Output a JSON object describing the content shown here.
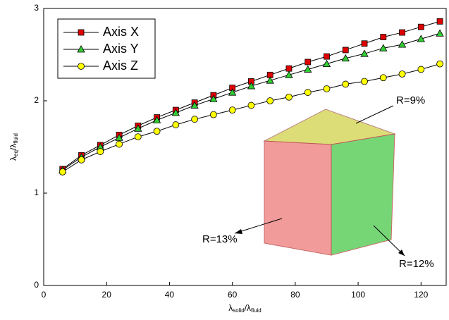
{
  "chart_data": {
    "type": "line",
    "x_label": [
      "λ",
      "solid",
      "/λ",
      "fluid"
    ],
    "y_label": [
      "λ",
      "eq",
      "/λ",
      "fluid"
    ],
    "x": [
      6,
      12,
      18,
      24,
      30,
      36,
      42,
      48,
      54,
      60,
      66,
      72,
      78,
      84,
      90,
      96,
      102,
      108,
      114,
      120,
      126
    ],
    "series": [
      {
        "name": "Axis X",
        "color": "#e00000",
        "marker": "square",
        "values": [
          1.26,
          1.41,
          1.52,
          1.63,
          1.73,
          1.82,
          1.9,
          1.98,
          2.06,
          2.14,
          2.21,
          2.28,
          2.35,
          2.42,
          2.48,
          2.55,
          2.62,
          2.69,
          2.74,
          2.8,
          2.86
        ]
      },
      {
        "name": "Axis Y",
        "color": "#33cc33",
        "marker": "triangle",
        "values": [
          1.25,
          1.39,
          1.5,
          1.6,
          1.7,
          1.79,
          1.87,
          1.95,
          2.02,
          2.09,
          2.16,
          2.22,
          2.28,
          2.34,
          2.4,
          2.46,
          2.51,
          2.57,
          2.61,
          2.67,
          2.73
        ]
      },
      {
        "name": "Axis Z",
        "color": "#ffff00",
        "marker": "circle",
        "values": [
          1.23,
          1.36,
          1.45,
          1.53,
          1.61,
          1.67,
          1.74,
          1.8,
          1.85,
          1.9,
          1.95,
          2.0,
          2.04,
          2.09,
          2.13,
          2.18,
          2.21,
          2.25,
          2.29,
          2.34,
          2.4
        ]
      }
    ],
    "xlim": [
      0,
      128
    ],
    "xticks": [
      0,
      20,
      40,
      60,
      80,
      100,
      120
    ],
    "ylim": [
      0,
      3
    ],
    "yticks": [
      0,
      1,
      2,
      3
    ],
    "legend": "upper-left",
    "annotations": [
      "R=9%",
      "R=13%",
      "R=12%"
    ]
  }
}
